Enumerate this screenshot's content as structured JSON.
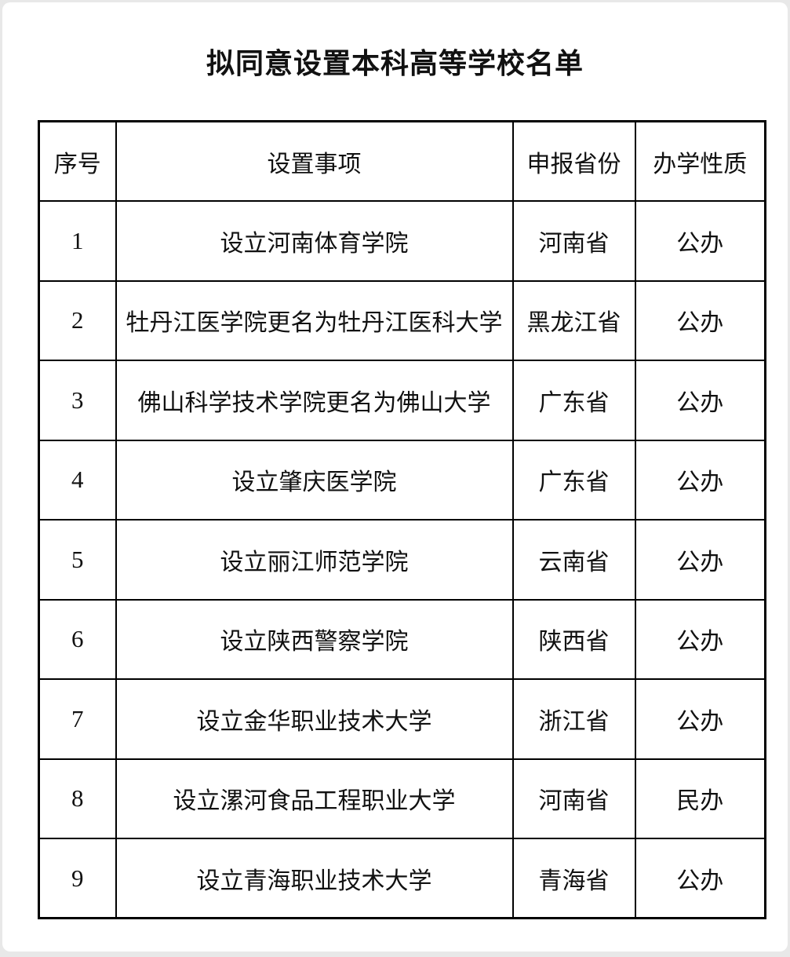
{
  "page": {
    "title": "拟同意设置本科高等学校名单"
  },
  "table": {
    "headers": {
      "no": "序号",
      "item": "设置事项",
      "province": "申报省份",
      "nature": "办学性质"
    },
    "rows": [
      {
        "no": "1",
        "item": "设立河南体育学院",
        "province": "河南省",
        "nature": "公办"
      },
      {
        "no": "2",
        "item": "牡丹江医学院更名为牡丹江医科大学",
        "province": "黑龙江省",
        "nature": "公办"
      },
      {
        "no": "3",
        "item": "佛山科学技术学院更名为佛山大学",
        "province": "广东省",
        "nature": "公办"
      },
      {
        "no": "4",
        "item": "设立肇庆医学院",
        "province": "广东省",
        "nature": "公办"
      },
      {
        "no": "5",
        "item": "设立丽江师范学院",
        "province": "云南省",
        "nature": "公办"
      },
      {
        "no": "6",
        "item": "设立陕西警察学院",
        "province": "陕西省",
        "nature": "公办"
      },
      {
        "no": "7",
        "item": "设立金华职业技术大学",
        "province": "浙江省",
        "nature": "公办"
      },
      {
        "no": "8",
        "item": "设立漯河食品工程职业大学",
        "province": "河南省",
        "nature": "民办"
      },
      {
        "no": "9",
        "item": "设立青海职业技术大学",
        "province": "青海省",
        "nature": "公办"
      }
    ]
  },
  "colors": {
    "border": "#000000",
    "text": "#111111",
    "page_background": "#ffffff",
    "frame_background": "#e8e8e8"
  }
}
